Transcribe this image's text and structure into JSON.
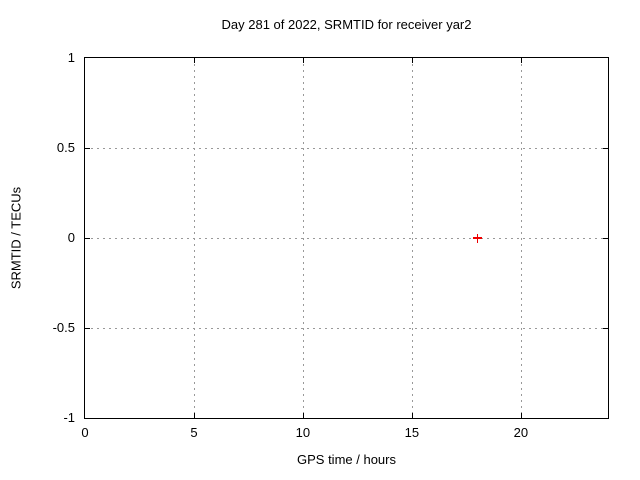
{
  "chart_data": {
    "type": "scatter",
    "title": "Day 281 of 2022, SRMTID for receiver yar2",
    "xlabel": "GPS time / hours",
    "ylabel": "SRMTID / TECUs",
    "xlim": [
      0,
      24
    ],
    "ylim": [
      -1,
      1
    ],
    "xticks": [
      0,
      5,
      10,
      15,
      20
    ],
    "xtick_labels": [
      "0",
      "5",
      "10",
      "15",
      "20"
    ],
    "yticks": [
      -1,
      -0.5,
      0,
      0.5,
      1
    ],
    "ytick_labels": [
      "-1",
      "-0.5",
      "0",
      "0.5",
      "1"
    ],
    "grid": true,
    "legend": "none",
    "grid_color": "#999999",
    "axis_color": "#000000",
    "background_color": "#ffffff",
    "series": [
      {
        "name": "SRMTID",
        "marker": "plus",
        "color": "#ee0000",
        "points": [
          {
            "x": 18,
            "y": 0
          }
        ]
      }
    ]
  }
}
